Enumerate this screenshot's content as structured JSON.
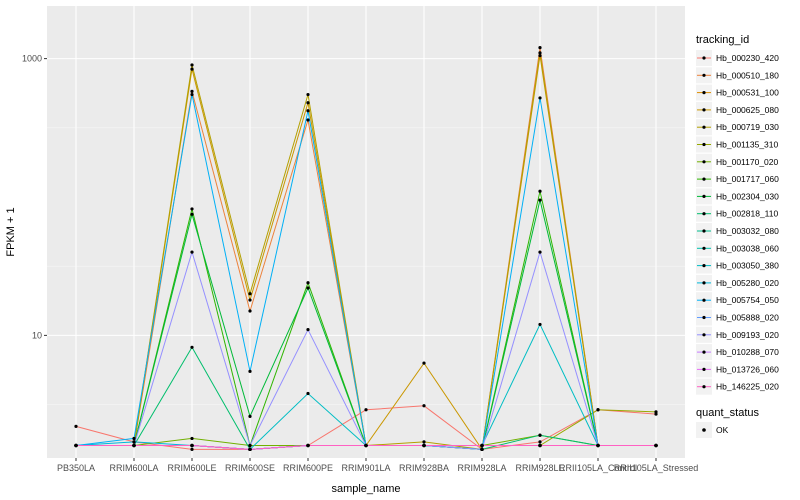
{
  "chart_data": {
    "type": "line",
    "xlabel": "sample_name",
    "ylabel": "FPKM + 1",
    "y_scale": "log10",
    "ylim": [
      1.3,
      2400
    ],
    "y_ticks": [
      10,
      1000
    ],
    "y_tick_labels": [
      "10",
      "1000"
    ],
    "grid": true,
    "legend_placement": "right",
    "categories": [
      "PB350LA",
      "RRIM600LA",
      "RRIM600LE",
      "RRIM600SE",
      "RRIM600PE",
      "RRIM901LA",
      "RRIM928BA",
      "RRIM928LA",
      "RRIM928LE",
      "RRII105LA_Control",
      "RRII105LA_Stressed"
    ],
    "legend_title": "tracking_id",
    "series": [
      {
        "name": "Hb_000230_420",
        "color": "#F8766D",
        "values": [
          2.2,
          1.7,
          1.5,
          1.5,
          1.6,
          2.9,
          3.1,
          1.5,
          1.7,
          2.9,
          2.7
        ]
      },
      {
        "name": "Hb_000510_180",
        "color": "#EC823C",
        "values": [
          1.6,
          1.6,
          580,
          15,
          360,
          1.6,
          1.6,
          1.5,
          1200,
          1.6,
          1.6
        ]
      },
      {
        "name": "Hb_000531_100",
        "color": "#DD8D00",
        "values": [
          1.6,
          1.6,
          1.6,
          1.5,
          1.6,
          1.6,
          1.6,
          1.6,
          1.6,
          1.6,
          1.6
        ]
      },
      {
        "name": "Hb_000625_080",
        "color": "#CA9700",
        "values": [
          1.6,
          1.6,
          840,
          18,
          480,
          1.6,
          6.3,
          1.5,
          1050,
          1.6,
          1.6
        ]
      },
      {
        "name": "Hb_000719_030",
        "color": "#B3A000",
        "values": [
          1.6,
          1.6,
          900,
          20,
          550,
          1.6,
          1.7,
          1.5,
          1100,
          1.6,
          1.6
        ]
      },
      {
        "name": "Hb_001135_310",
        "color": "#97A900",
        "values": [
          1.6,
          1.6,
          1.6,
          1.5,
          1.6,
          1.6,
          1.6,
          1.6,
          1.6,
          2.9,
          2.8
        ]
      },
      {
        "name": "Hb_001170_020",
        "color": "#71B000",
        "values": [
          1.6,
          1.6,
          1.8,
          1.6,
          1.6,
          1.6,
          1.6,
          1.6,
          1.9,
          1.6,
          1.6
        ]
      },
      {
        "name": "Hb_001717_060",
        "color": "#2FB600",
        "values": [
          1.6,
          1.6,
          82,
          1.6,
          24,
          1.6,
          1.6,
          1.5,
          110,
          1.6,
          1.6
        ]
      },
      {
        "name": "Hb_002304_030",
        "color": "#00BA38",
        "values": [
          1.6,
          1.6,
          75,
          2.6,
          22,
          1.6,
          1.6,
          1.5,
          95,
          1.6,
          1.6
        ]
      },
      {
        "name": "Hb_002818_110",
        "color": "#00BE6C",
        "values": [
          1.6,
          1.6,
          8.2,
          1.5,
          1.6,
          1.6,
          1.6,
          1.5,
          1.9,
          1.6,
          1.6
        ]
      },
      {
        "name": "Hb_003032_080",
        "color": "#00BF8F",
        "values": [
          1.6,
          1.6,
          1.6,
          1.5,
          1.6,
          1.6,
          1.6,
          1.6,
          1.6,
          1.6,
          1.6
        ]
      },
      {
        "name": "Hb_003038_060",
        "color": "#00C0AC",
        "values": [
          1.6,
          1.6,
          1.6,
          1.5,
          1.6,
          1.6,
          1.6,
          1.6,
          1.6,
          1.6,
          1.6
        ]
      },
      {
        "name": "Hb_003050_380",
        "color": "#00BDC4",
        "values": [
          1.6,
          1.6,
          1.6,
          1.5,
          3.8,
          1.6,
          1.6,
          1.6,
          12,
          1.6,
          1.6
        ]
      },
      {
        "name": "Hb_005280_020",
        "color": "#00B8DA",
        "values": [
          1.6,
          1.7,
          1.6,
          1.5,
          1.6,
          1.6,
          1.6,
          1.6,
          1.6,
          1.6,
          1.6
        ]
      },
      {
        "name": "Hb_005754_050",
        "color": "#00B0F6",
        "values": [
          1.6,
          1.8,
          550,
          5.5,
          420,
          1.6,
          1.6,
          1.5,
          520,
          1.6,
          1.6
        ]
      },
      {
        "name": "Hb_005888_020",
        "color": "#619CFF",
        "values": [
          1.6,
          1.6,
          1.6,
          1.5,
          1.6,
          1.6,
          1.6,
          1.6,
          1.6,
          1.6,
          1.6
        ]
      },
      {
        "name": "Hb_009193_020",
        "color": "#9590FF",
        "values": [
          1.6,
          1.6,
          40,
          1.6,
          11,
          1.6,
          1.6,
          1.5,
          40,
          1.6,
          1.6
        ]
      },
      {
        "name": "Hb_010288_070",
        "color": "#C77CFF",
        "values": [
          1.6,
          1.6,
          1.6,
          1.5,
          1.6,
          1.6,
          1.6,
          1.6,
          1.6,
          1.6,
          1.6
        ]
      },
      {
        "name": "Hb_013726_060",
        "color": "#E76BF3",
        "values": [
          1.6,
          1.6,
          1.6,
          1.5,
          1.6,
          1.6,
          1.6,
          1.6,
          1.6,
          1.6,
          1.6
        ]
      },
      {
        "name": "Hb_146225_020",
        "color": "#FF61C3",
        "values": [
          1.6,
          1.6,
          1.6,
          1.5,
          1.6,
          1.6,
          1.6,
          1.6,
          1.6,
          1.6,
          1.6
        ]
      }
    ],
    "shape_legend": {
      "title": "quant_status",
      "items": [
        "OK"
      ]
    }
  }
}
